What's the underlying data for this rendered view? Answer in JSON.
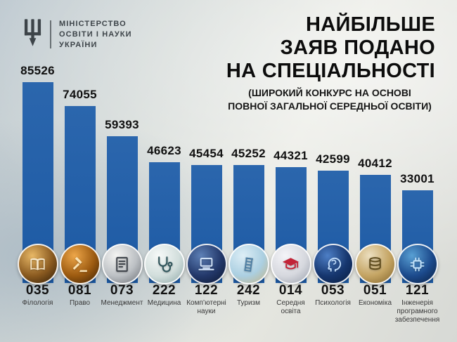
{
  "header": {
    "ministry_lines": [
      "МІНІСТЕРСТВО",
      "ОСВІТИ І НАУКИ",
      "УКРАЇНИ"
    ],
    "title_lines": [
      "НАЙБІЛЬШЕ",
      "ЗАЯВ ПОДАНО",
      "НА СПЕЦІАЛЬНОСТІ"
    ],
    "subtitle_lines": [
      "(ШИРОКИЙ КОНКУРС НА ОСНОВІ",
      "ПОВНОЇ ЗАГАЛЬНОЇ СЕРЕДНЬОЇ ОСВІТИ)"
    ]
  },
  "colors": {
    "bar": "#1d5aa4",
    "title_text": "#0c0c0c",
    "logo_text": "#3d4449",
    "background_light": "#e8e9e2",
    "background_bluegray": "#bfcad1"
  },
  "chart_data": {
    "type": "bar",
    "title": "НАЙБІЛЬШЕ ЗАЯВ ПОДАНО НА СПЕЦІАЛЬНОСТІ",
    "subtitle": "(ШИРОКИЙ КОНКУРС НА ОСНОВІ ПОВНОЇ ЗАГАЛЬНОЇ СЕРЕДНЬОЇ ОСВІТИ)",
    "bar_color": "#1d5aa4",
    "value_labels_shown": true,
    "grid": false,
    "legend": "none",
    "ylim": [
      0,
      90000
    ],
    "categories": [
      "035 Філологія",
      "081 Право",
      "073 Менеджмент",
      "222 Медицина",
      "122 Комп’ютерні науки",
      "242 Туризм",
      "014 Середня освіта",
      "053 Психологія",
      "051 Економіка",
      "121 Інженерія програмного забезпечення"
    ],
    "values": [
      85526,
      74055,
      59393,
      46623,
      45454,
      45252,
      44321,
      42599,
      40412,
      33001
    ],
    "items": [
      {
        "code": "035",
        "name": "Філологія",
        "value": 85526,
        "icon": "open-book-photo-icon",
        "circle_colors": [
          "#e8b866",
          "#8a5a20",
          "#2e1c06"
        ],
        "glyph_color": "#f7e9cd"
      },
      {
        "code": "081",
        "name": "Право",
        "value": 74055,
        "icon": "gavel-photo-icon",
        "circle_colors": [
          "#eda649",
          "#9c5a10",
          "#381f04"
        ],
        "glyph_color": "#f9e3b6"
      },
      {
        "code": "073",
        "name": "Менеджмент",
        "value": 59393,
        "icon": "paperwork-calculator-photo-icon",
        "circle_colors": [
          "#f4f4f2",
          "#bcc0c4",
          "#6a6e74"
        ],
        "glyph_color": "#42474e"
      },
      {
        "code": "222",
        "name": "Медицина",
        "value": 46623,
        "icon": "stethoscope-photo-icon",
        "circle_colors": [
          "#f6f9f8",
          "#d2dedc",
          "#8ba6a6"
        ],
        "glyph_color": "#31565c"
      },
      {
        "code": "122",
        "name": "Комп’ютерні науки",
        "value": 45454,
        "icon": "laptop-keyboard-photo-icon",
        "circle_colors": [
          "#5d80b6",
          "#23386a",
          "#0c1730"
        ],
        "glyph_color": "#cfe0f6"
      },
      {
        "code": "242",
        "name": "Туризм",
        "value": 45252,
        "icon": "pisa-tower-photo-icon",
        "circle_colors": [
          "#ddeef6",
          "#abcfe1",
          "#c4b383"
        ],
        "glyph_color": "#4f7fa3"
      },
      {
        "code": "014",
        "name": "Середня освіта",
        "value": 44321,
        "icon": "graduation-cap-photo-icon",
        "circle_colors": [
          "#f4f4f8",
          "#d6d8de",
          "#9aa0ac"
        ],
        "glyph_color": "#c22438"
      },
      {
        "code": "053",
        "name": "Психологія",
        "value": 42599,
        "icon": "brain-head-photo-icon",
        "circle_colors": [
          "#4d7fc6",
          "#16366e",
          "#081c3e"
        ],
        "glyph_color": "#bcd8f8"
      },
      {
        "code": "051",
        "name": "Економіка",
        "value": 40412,
        "icon": "coins-hand-photo-icon",
        "circle_colors": [
          "#ecdfc0",
          "#c4a463",
          "#80622a"
        ],
        "glyph_color": "#5d4a1c"
      },
      {
        "code": "121",
        "name": "Інженерія програмного забезпечення",
        "value": 33001,
        "icon": "digital-circuit-photo-icon",
        "circle_colors": [
          "#58a0d4",
          "#1c4a8c",
          "#0a1f40"
        ],
        "glyph_color": "#c2e2fa"
      }
    ]
  }
}
